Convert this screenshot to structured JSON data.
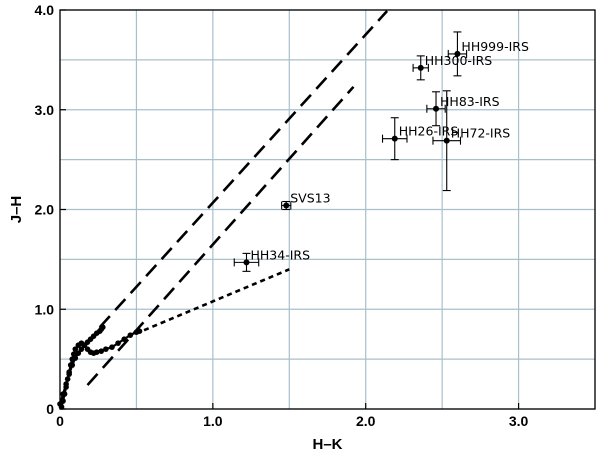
{
  "chart_data": {
    "type": "scatter",
    "title": "",
    "xlabel": "H–K",
    "ylabel": "J–H",
    "xlim": [
      0,
      3.5
    ],
    "ylim": [
      0,
      4.0
    ],
    "grid": true,
    "x_ticks": [
      {
        "value": 0,
        "label": "0"
      },
      {
        "value": 1.0,
        "label": "1.0"
      },
      {
        "value": 2.0,
        "label": "2.0"
      },
      {
        "value": 3.0,
        "label": "3.0"
      }
    ],
    "y_ticks": [
      {
        "value": 0,
        "label": "0"
      },
      {
        "value": 1.0,
        "label": "1.0"
      },
      {
        "value": 2.0,
        "label": "2.0"
      },
      {
        "value": 3.0,
        "label": "3.0"
      },
      {
        "value": 4.0,
        "label": "4.0"
      }
    ],
    "x_grid_values": [
      0,
      0.5,
      1.0,
      1.5,
      2.0,
      2.5,
      3.0,
      3.5
    ],
    "y_grid_values": [
      0,
      0.5,
      1.0,
      1.5,
      2.0,
      2.5,
      3.0,
      3.5,
      4.0
    ],
    "points": [
      {
        "name": "HH999-IRS",
        "label": "HH999-IRS",
        "x": 2.6,
        "y": 3.56,
        "xerr": 0.06,
        "yerr": 0.22
      },
      {
        "name": "HH300-IRS",
        "label": "HH300-IRS",
        "x": 2.36,
        "y": 3.42,
        "xerr": 0.05,
        "yerr": 0.12
      },
      {
        "name": "HH83-IRS",
        "label": "HH83-IRS",
        "x": 2.46,
        "y": 3.01,
        "xerr": 0.06,
        "yerr": 0.17
      },
      {
        "name": "HH26-IRS",
        "label": "HH26-IRS",
        "x": 2.19,
        "y": 2.71,
        "xerr": 0.08,
        "yerr": 0.21
      },
      {
        "name": "HH72-IRS",
        "label": "HH72-IRS",
        "x": 2.53,
        "y": 2.69,
        "xerr": 0.09,
        "yerr": 0.5
      },
      {
        "name": "SVS13",
        "label": "SVS13",
        "x": 1.48,
        "y": 2.04,
        "xerr": 0.03,
        "yerr": 0.04
      },
      {
        "name": "HH34-IRS",
        "label": "HH34-IRS",
        "x": 1.22,
        "y": 1.47,
        "xerr": 0.08,
        "yerr": 0.09
      }
    ],
    "lines": [
      {
        "name": "reddening-upper",
        "style": "long-dash",
        "x": [
          0.26,
          2.14
        ],
        "y": [
          0.82,
          3.99
        ]
      },
      {
        "name": "reddening-lower",
        "style": "long-dash",
        "x": [
          0.18,
          1.92
        ],
        "y": [
          0.24,
          3.23
        ]
      },
      {
        "name": "ctts-locus",
        "style": "short-dash",
        "x": [
          0.55,
          1.5
        ],
        "y": [
          0.79,
          1.4
        ]
      }
    ],
    "sequences": [
      {
        "name": "dwarf-sequence",
        "x": [
          0.01,
          0.02,
          0.03,
          0.04,
          0.05,
          0.06,
          0.07,
          0.08,
          0.09,
          0.1,
          0.12,
          0.14,
          0.16,
          0.18,
          0.2,
          0.22,
          0.24,
          0.27,
          0.3,
          0.34,
          0.38,
          0.42,
          0.46,
          0.5,
          0.52
        ],
        "y": [
          0.02,
          0.08,
          0.15,
          0.22,
          0.3,
          0.37,
          0.44,
          0.5,
          0.55,
          0.6,
          0.64,
          0.66,
          0.64,
          0.6,
          0.57,
          0.56,
          0.57,
          0.58,
          0.6,
          0.62,
          0.66,
          0.7,
          0.74,
          0.77,
          0.78
        ]
      },
      {
        "name": "giant-sequence",
        "x": [
          0.0,
          0.02,
          0.04,
          0.06,
          0.08,
          0.1,
          0.12,
          0.14,
          0.16,
          0.18,
          0.2,
          0.22,
          0.24,
          0.26,
          0.27,
          0.28
        ],
        "y": [
          0.05,
          0.15,
          0.25,
          0.35,
          0.44,
          0.51,
          0.56,
          0.6,
          0.64,
          0.67,
          0.7,
          0.73,
          0.76,
          0.78,
          0.8,
          0.82
        ]
      }
    ]
  }
}
